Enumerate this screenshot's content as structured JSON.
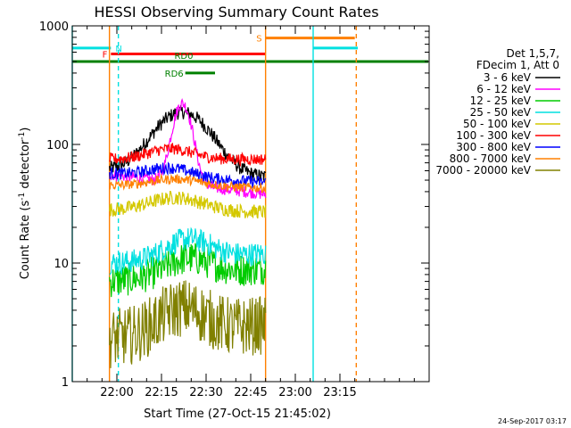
{
  "chart_data": {
    "type": "line",
    "title": "HESSI Observing Summary Count Rates",
    "xlabel": "Start Time (27-Oct-15 21:45:02)",
    "ylabel_main": "Count Rate (s",
    "ylabel_sup1": "-1",
    "ylabel_mid": " detector",
    "ylabel_sup2": "-1",
    "ylabel_end": ")",
    "yscale": "log",
    "ylim": [
      1,
      1000
    ],
    "xlim_minutes": [
      -15,
      105
    ],
    "x_ticks": [
      {
        "minutes": 0,
        "label": "22:00"
      },
      {
        "minutes": 15,
        "label": "22:15"
      },
      {
        "minutes": 30,
        "label": "22:30"
      },
      {
        "minutes": 45,
        "label": "22:45"
      },
      {
        "minutes": 60,
        "label": "23:00"
      },
      {
        "minutes": 75,
        "label": "23:15"
      }
    ],
    "y_ticks": [
      {
        "value": 1,
        "label": "1"
      },
      {
        "value": 10,
        "label": "10"
      },
      {
        "value": 100,
        "label": "100"
      },
      {
        "value": 1000,
        "label": "1000"
      }
    ],
    "legend_header": [
      "Det 1,5,7,",
      "FDecim 1, Att 0"
    ],
    "series": [
      {
        "name": "3 - 6 keV",
        "color": "#000000",
        "start": 61,
        "end": 53,
        "peak": 230,
        "peak_at": 22,
        "peak_width": 12,
        "base": 100,
        "noise": 0.06
      },
      {
        "name": "6 - 12 keV",
        "color": "#ff00ff",
        "start": 56,
        "end": 38,
        "peak": 225,
        "peak_at": 22,
        "peak_width": 4,
        "base": 50,
        "noise": 0.05
      },
      {
        "name": "12 - 25 keV",
        "color": "#00cc00",
        "start": 7,
        "end": 9,
        "peak": 11,
        "peak_at": 24,
        "peak_width": 10,
        "base": 8,
        "noise": 0.14
      },
      {
        "name": "25 - 50 keV",
        "color": "#00e0e0",
        "start": 10,
        "end": 12,
        "peak": 15,
        "peak_at": 24,
        "peak_width": 10,
        "base": 10,
        "noise": 0.1
      },
      {
        "name": "50 - 100 keV",
        "color": "#d4c800",
        "start": 28,
        "end": 27,
        "peak": 38,
        "peak_at": 20,
        "peak_width": 12,
        "base": 30,
        "noise": 0.06
      },
      {
        "name": "100 - 300 keV",
        "color": "#ff0000",
        "start": 75,
        "end": 75,
        "peak": 95,
        "peak_at": 18,
        "peak_width": 10,
        "base": 78,
        "noise": 0.05
      },
      {
        "name": "300 - 800 keV",
        "color": "#0000ff",
        "start": 57,
        "end": 48,
        "peak": 65,
        "peak_at": 18,
        "peak_width": 10,
        "base": 55,
        "noise": 0.05
      },
      {
        "name": "800 - 7000 keV",
        "color": "#ff8000",
        "start": 45,
        "end": 43,
        "peak": 52,
        "peak_at": 20,
        "peak_width": 12,
        "base": 45,
        "noise": 0.04
      },
      {
        "name": "7000 - 20000 keV",
        "color": "#808000",
        "start": 2.3,
        "end": 3,
        "peak": 4.2,
        "peak_at": 22,
        "peak_width": 10,
        "base": 2.6,
        "noise": 0.25
      }
    ],
    "flags": [
      {
        "label": "N",
        "color": "#00e0e0",
        "y": 650,
        "segments": [
          [
            -15,
            -2
          ],
          [
            66,
            81
          ]
        ]
      },
      {
        "label": "F",
        "color": "#ff0000",
        "y": 580,
        "segments": [
          [
            -2,
            50
          ]
        ]
      },
      {
        "label": "S",
        "color": "#ff8000",
        "y": 790,
        "segments": [
          [
            50,
            80
          ]
        ]
      },
      {
        "label": "RD0",
        "color": "#008000",
        "y": 500,
        "segments": [
          [
            -15,
            105
          ]
        ]
      },
      {
        "label": "RD6",
        "color": "#008000",
        "y": 400,
        "segments": [
          [
            23,
            33
          ]
        ]
      }
    ],
    "vlines": [
      {
        "minutes": -15,
        "color": "#00e0e0",
        "dashed": false
      },
      {
        "minutes": -2.5,
        "color": "#ff8000",
        "dashed": false
      },
      {
        "minutes": 0.5,
        "color": "#00e0e0",
        "dashed": true
      },
      {
        "minutes": 50,
        "color": "#ff8000",
        "dashed": false
      },
      {
        "minutes": 66,
        "color": "#00e0e0",
        "dashed": false
      },
      {
        "minutes": 80.5,
        "color": "#ff8000",
        "dashed": true
      }
    ],
    "data_window_minutes": [
      -2.5,
      50
    ]
  },
  "footer_timestamp": "24-Sep-2017 03:17"
}
